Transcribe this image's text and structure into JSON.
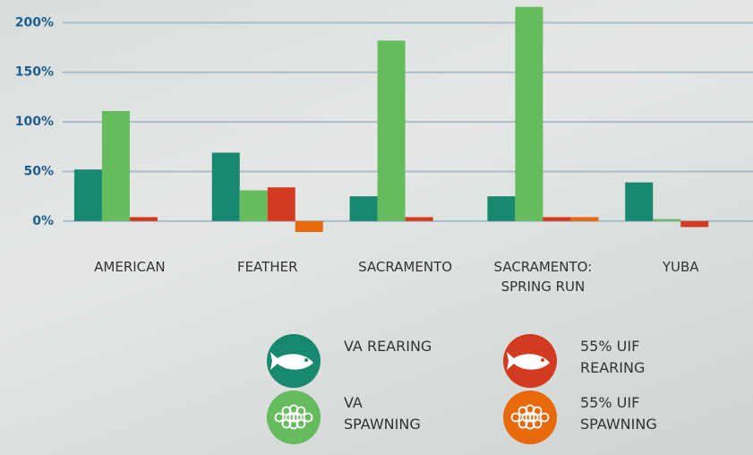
{
  "chart_data": {
    "type": "bar",
    "categories": [
      "AMERICAN",
      "FEATHER",
      "SACRAMENTO",
      "SACRAMENTO: SPRING RUN",
      "YUBA"
    ],
    "series": [
      {
        "name": "VA REARING",
        "color": "#18896f",
        "values": [
          52,
          69,
          25,
          25,
          39
        ]
      },
      {
        "name": "VA SPAWNING",
        "color": "#66bb5e",
        "values": [
          111,
          31,
          182,
          216,
          2
        ]
      },
      {
        "name": "55% UIF REARING",
        "color": "#d33a1f",
        "values": [
          4,
          34,
          4,
          4,
          -6
        ]
      },
      {
        "name": "55% UIF SPAWNING",
        "color": "#e8690c",
        "values": [
          0,
          -11,
          0,
          4,
          0
        ]
      }
    ],
    "ylim": [
      -20,
      222
    ],
    "yticks": [
      {
        "value": 0,
        "label": "0%"
      },
      {
        "value": 50,
        "label": "50%"
      },
      {
        "value": 100,
        "label": "100%"
      },
      {
        "value": 150,
        "label": "150%"
      },
      {
        "value": 200,
        "label": "200%"
      }
    ],
    "grid": true
  }
}
